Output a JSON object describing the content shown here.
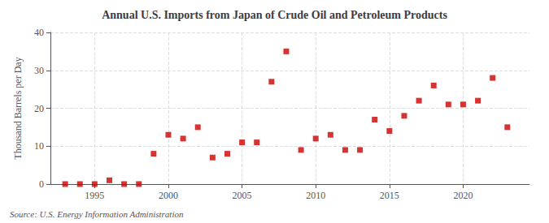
{
  "chart_data": {
    "type": "scatter",
    "title": "Annual U.S. Imports from Japan of Crude Oil and Petroleum Products",
    "ylabel": "Thousand Barrels per Day",
    "source": "Source: U.S. Energy Information Administration",
    "x": [
      1993,
      1994,
      1995,
      1996,
      1997,
      1998,
      1999,
      2000,
      2001,
      2002,
      2003,
      2004,
      2005,
      2006,
      2007,
      2008,
      2009,
      2010,
      2011,
      2012,
      2013,
      2014,
      2015,
      2016,
      2017,
      2018,
      2019,
      2020,
      2021,
      2022,
      2023
    ],
    "values": [
      0,
      0,
      0,
      1,
      0,
      0,
      8,
      13,
      12,
      15,
      7,
      8,
      11,
      11,
      27,
      35,
      9,
      12,
      13,
      9,
      9,
      17,
      14,
      18,
      22,
      26,
      21,
      21,
      22,
      28,
      15
    ],
    "color": "#cc0000",
    "marker": "square",
    "xlim": [
      1992,
      2024.5
    ],
    "xticks": [
      1995,
      2000,
      2005,
      2010,
      2015,
      2020
    ],
    "ylim": [
      0,
      40
    ],
    "yticks": [
      0,
      10,
      20,
      30,
      40
    ],
    "grid": true
  }
}
